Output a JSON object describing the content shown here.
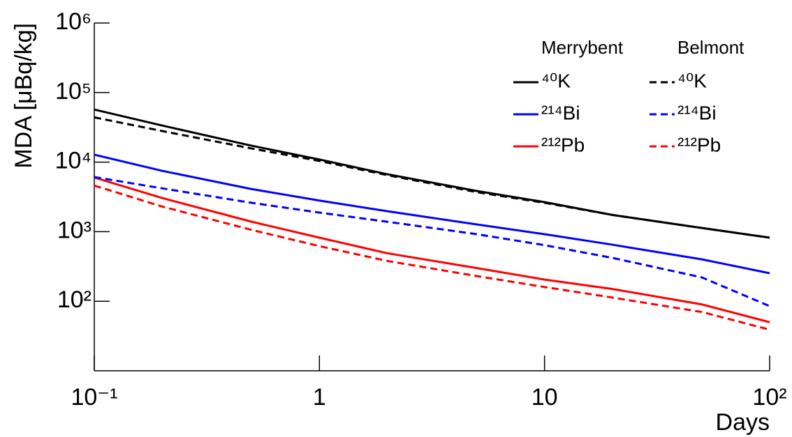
{
  "chart_data": {
    "type": "line",
    "x_label": "Days",
    "y_label": "MDA [μBq/kg]",
    "x": [
      0.1,
      0.2,
      0.5,
      1,
      2,
      5,
      10,
      20,
      50,
      100
    ],
    "xlim": [
      0.1,
      100
    ],
    "ylim": [
      10,
      1000000
    ],
    "x_log": true,
    "y_log": true,
    "xticks": [
      {
        "value": 0.1,
        "label": "10⁻¹"
      },
      1,
      10,
      {
        "value": 100,
        "label": "10²"
      }
    ],
    "yticks": [
      {
        "value": 100,
        "label": "10²"
      },
      {
        "value": 1000,
        "label": "10³"
      },
      {
        "value": 10000,
        "label": "10⁴"
      },
      {
        "value": 100000,
        "label": "10⁵"
      },
      {
        "value": 1000000,
        "label": "10⁶"
      }
    ],
    "legend_groups": [
      "Merrybent",
      "Belmont"
    ],
    "legend": "upper right",
    "series": [
      {
        "name": "⁴⁰K",
        "group": 0,
        "dashed": false,
        "color": "#000000",
        "values": [
          57000,
          33600,
          17200,
          10900,
          6700,
          3850,
          2660,
          1740,
          1130,
          820
        ]
      },
      {
        "name": "²¹⁴Bi",
        "group": 0,
        "dashed": false,
        "color": "#0000ff",
        "values": [
          12800,
          7500,
          4100,
          2800,
          1970,
          1270,
          920,
          650,
          400,
          253
        ]
      },
      {
        "name": "²¹²Pb",
        "group": 0,
        "dashed": false,
        "color": "#ff0000",
        "values": [
          6000,
          3050,
          1390,
          820,
          490,
          300,
          205,
          150,
          90,
          50
        ]
      },
      {
        "name": "⁴⁰K",
        "group": 1,
        "dashed": true,
        "color": "#000000",
        "values": [
          44000,
          28000,
          15700,
          10400,
          6500,
          3700,
          2600,
          1740,
          1130,
          820
        ]
      },
      {
        "name": "²¹⁴Bi",
        "group": 1,
        "dashed": true,
        "color": "#0000ff",
        "values": [
          6100,
          4200,
          2600,
          1880,
          1390,
          920,
          640,
          420,
          220,
          85
        ]
      },
      {
        "name": "²¹²Pb",
        "group": 1,
        "dashed": true,
        "color": "#ff0000",
        "values": [
          4600,
          2300,
          1060,
          620,
          380,
          230,
          160,
          113,
          70,
          39
        ]
      }
    ]
  }
}
